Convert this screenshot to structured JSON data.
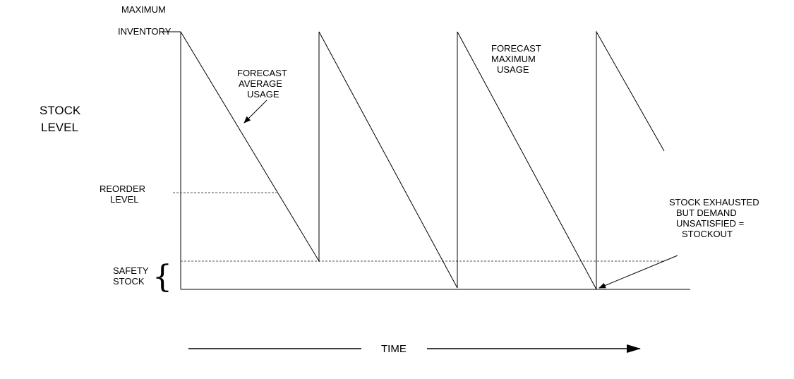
{
  "labels": {
    "max_line1": "MAXIMUM",
    "max_line2": "INVENTORY",
    "stock_line1": "STOCK",
    "stock_line2": "LEVEL",
    "reorder_line1": "REORDER",
    "reorder_line2": "LEVEL",
    "safety_line1": "SAFETY",
    "safety_line2": "STOCK",
    "avg_line1": "FORECAST",
    "avg_line2": "AVERAGE",
    "avg_line3": "USAGE",
    "maxuse_line1": "FORECAST",
    "maxuse_line2": "MAXIMUM",
    "maxuse_line3": "USAGE",
    "out_line1": "STOCK  EXHAUSTED",
    "out_line2": "BUT  DEMAND",
    "out_line3": "UNSATISFIED  =",
    "out_line4": "STOCKOUT",
    "time": "TIME"
  },
  "colors": {
    "line": "#000000",
    "dashed": "#555555"
  }
}
